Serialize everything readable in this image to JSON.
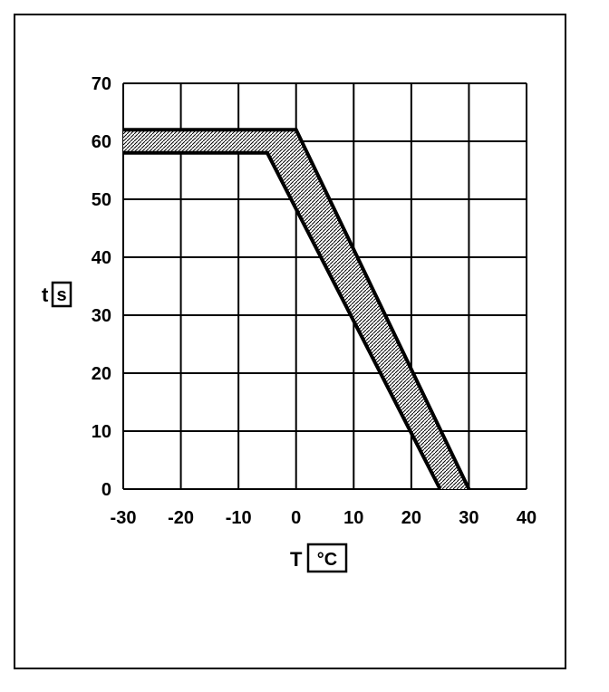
{
  "chart_data": {
    "type": "area",
    "title": "",
    "xlabel": {
      "symbol": "T",
      "unit": "°C"
    },
    "ylabel": {
      "symbol": "t",
      "unit": "s"
    },
    "xlim": [
      -30,
      40
    ],
    "ylim": [
      0,
      70
    ],
    "x_ticks": [
      -30,
      -20,
      -10,
      0,
      10,
      20,
      30,
      40
    ],
    "y_ticks": [
      0,
      10,
      20,
      30,
      40,
      50,
      60,
      70
    ],
    "x_tick_labels": [
      "-30",
      "-20",
      "-10",
      "0",
      "10",
      "20",
      "30",
      "40"
    ],
    "y_tick_labels": [
      "0",
      "10",
      "20",
      "30",
      "40",
      "50",
      "60",
      "70"
    ],
    "grid": true,
    "legend": "none",
    "band": {
      "upper": {
        "x": [
          -30,
          0,
          30
        ],
        "y": [
          62,
          62,
          0
        ]
      },
      "lower": {
        "x": [
          -30,
          -5,
          25
        ],
        "y": [
          58,
          58,
          0
        ]
      }
    },
    "colors": {
      "line": "#000000",
      "hatch": "#000000",
      "background": "#ffffff"
    }
  }
}
